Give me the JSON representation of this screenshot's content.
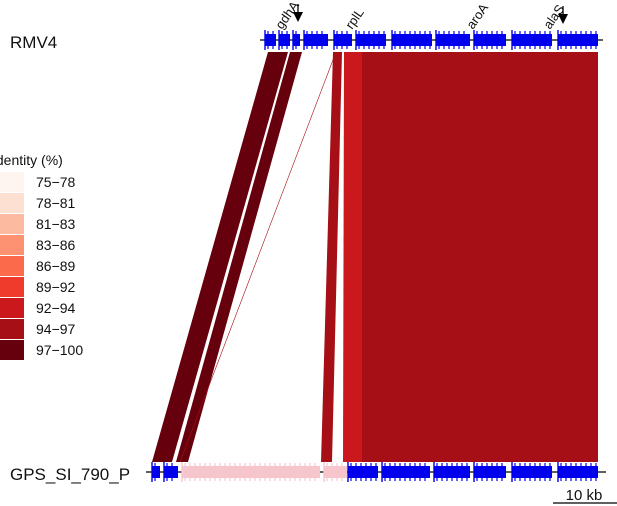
{
  "genomes": {
    "top": {
      "name": "RMV4"
    },
    "bottom": {
      "name": "GPS_SI_790_P"
    }
  },
  "gene_labels": [
    "gdhA",
    "rplL",
    "aroA",
    "alaS"
  ],
  "legend": {
    "title": "Identity (%)",
    "items": [
      {
        "label": "75−78",
        "color": "#fff5f0"
      },
      {
        "label": "78−81",
        "color": "#fee0d2"
      },
      {
        "label": "81−83",
        "color": "#fcbba1"
      },
      {
        "label": "83−86",
        "color": "#fc9272"
      },
      {
        "label": "86−89",
        "color": "#fb6a4a"
      },
      {
        "label": "89−92",
        "color": "#ef3b2c"
      },
      {
        "label": "92−94",
        "color": "#cb181d"
      },
      {
        "label": "94−97",
        "color": "#a50f15"
      },
      {
        "label": "97−100",
        "color": "#67000d"
      }
    ]
  },
  "scale_bar": {
    "label": "10 kb"
  },
  "colors": {
    "gene_blue": "#0000ee",
    "gene_pink": "#f7c6cc",
    "backbone": "#000000"
  }
}
